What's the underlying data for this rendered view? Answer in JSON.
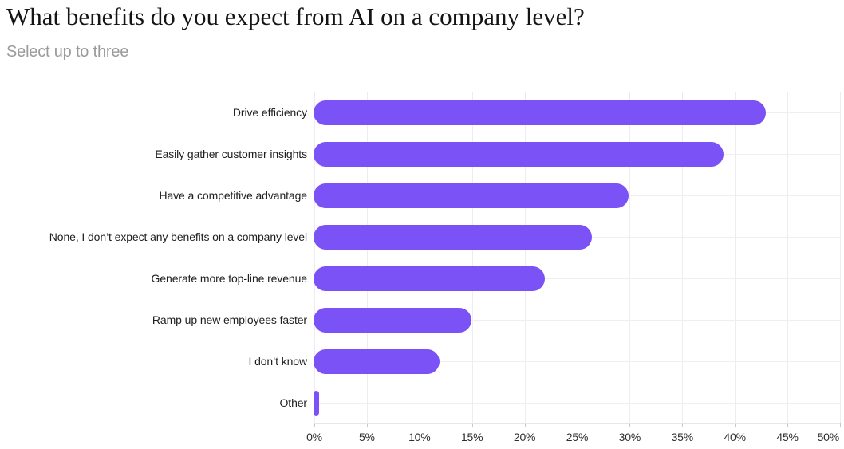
{
  "header": {
    "title": "What benefits do you expect from AI on a company level?",
    "subtitle": "Select up to three"
  },
  "chart_data": {
    "type": "bar",
    "orientation": "horizontal",
    "title": "What benefits do you expect from AI on a company level?",
    "subtitle": "Select up to three",
    "categories": [
      "Drive efficiency",
      "Easily gather customer insights",
      "Have a competitive advantage",
      "None, I don’t expect any benefits on a company level",
      "Generate more top-line revenue",
      "Ramp up new employees faster",
      "I don’t know",
      "Other"
    ],
    "values": [
      43,
      39,
      30,
      26.5,
      22,
      15,
      12,
      0.5
    ],
    "unit": "%",
    "xlabel": "",
    "ylabel": "",
    "xlim": [
      0,
      50
    ],
    "x_ticks": [
      0,
      5,
      10,
      15,
      20,
      25,
      30,
      35,
      40,
      45,
      50
    ],
    "x_tick_labels": [
      "0%",
      "5%",
      "10%",
      "15%",
      "20%",
      "25%",
      "30%",
      "35%",
      "40%",
      "45%",
      "50%"
    ],
    "grid": true,
    "legend": false
  },
  "colors": {
    "bar": "#7B52F6",
    "grid_vertical": "#EDEDEF",
    "grid_horizontal": "#EFEFF1",
    "axis_line": "#E7E7EA",
    "tick_mark": "#C9C9C9",
    "title_text": "#141414",
    "subtitle_text": "#9B9B9B",
    "category_text": "#1E1E1E",
    "tick_text": "#2E2E2E",
    "background": "#FFFFFF"
  }
}
